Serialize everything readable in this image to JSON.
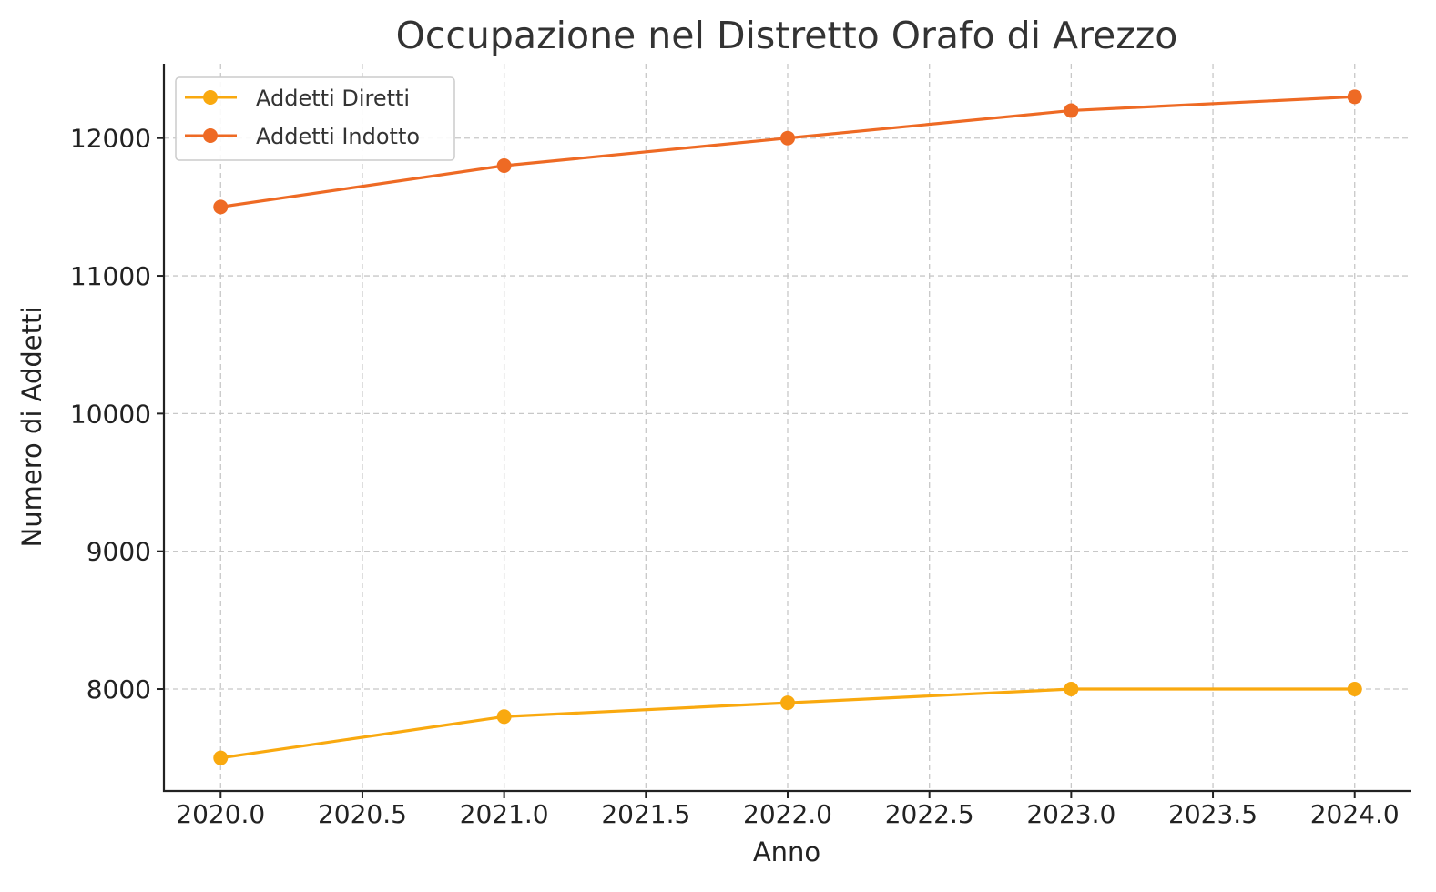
{
  "chart_data": {
    "type": "line",
    "title": "Occupazione nel Distretto Orafo di Arezzo",
    "xlabel": "Anno",
    "ylabel": "Numero di Addetti",
    "x": [
      2020,
      2021,
      2022,
      2023,
      2024
    ],
    "xlim": [
      2019.8,
      2024.2
    ],
    "ylim": [
      7260,
      12540
    ],
    "x_ticks": [
      "2020.0",
      "2020.5",
      "2021.0",
      "2021.5",
      "2022.0",
      "2022.5",
      "2023.0",
      "2023.5",
      "2024.0"
    ],
    "y_ticks": [
      "8000",
      "9000",
      "10000",
      "11000",
      "12000"
    ],
    "grid": true,
    "legend_position": "top-left",
    "series": [
      {
        "name": "Addetti Diretti",
        "color": "#F9A90F",
        "values": [
          7500,
          7800,
          7900,
          8000,
          8000
        ]
      },
      {
        "name": "Addetti Indotto",
        "color": "#EE6A24",
        "values": [
          11500,
          11800,
          12000,
          12200,
          12300
        ]
      }
    ]
  }
}
